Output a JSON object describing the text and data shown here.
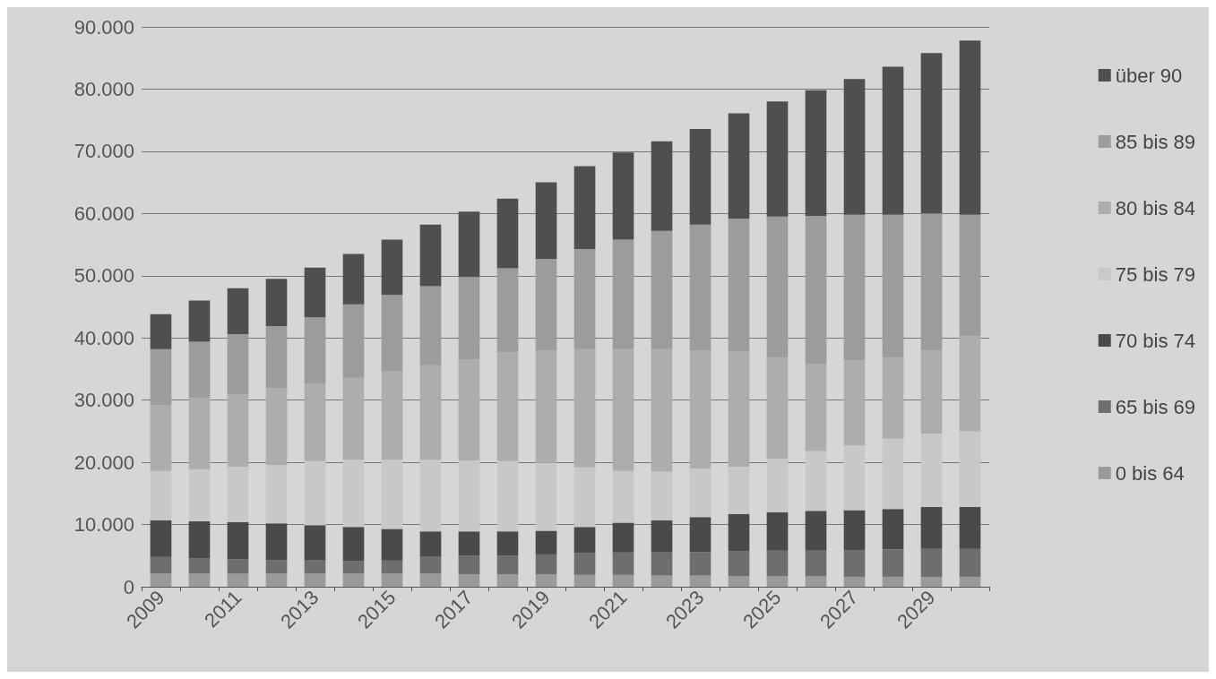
{
  "chart_data": {
    "type": "bar",
    "stacked": true,
    "categories": [
      "2009",
      null,
      "2011",
      null,
      "2013",
      null,
      "2015",
      null,
      "2017",
      null,
      "2019",
      null,
      "2021",
      null,
      "2023",
      null,
      "2025",
      null,
      "2027",
      null,
      "2029",
      null
    ],
    "ylim": [
      0,
      90000
    ],
    "yticks": [
      0,
      {
        "value": 10000,
        "label": "10.000"
      },
      {
        "value": 20000,
        "label": "20.000"
      },
      {
        "value": 30000,
        "label": "30.000"
      },
      {
        "value": 40000,
        "label": "40.000"
      },
      {
        "value": 50000,
        "label": "50.000"
      },
      {
        "value": 60000,
        "label": "60.000"
      },
      {
        "value": 70000,
        "label": "70.000"
      },
      {
        "value": 80000,
        "label": "80.000"
      },
      {
        "value": 90000,
        "label": "90.000"
      }
    ],
    "grid": "y",
    "legend": "right",
    "series": [
      {
        "name": "0 bis 64",
        "color": "#9a9a9a",
        "values": [
          2100,
          2100,
          2100,
          2100,
          2100,
          2100,
          2100,
          2100,
          2000,
          2000,
          2000,
          1900,
          1900,
          1800,
          1800,
          1700,
          1700,
          1700,
          1600,
          1600,
          1600,
          1600
        ]
      },
      {
        "name": "65 bis 69",
        "color": "#6e6e6e",
        "values": [
          2700,
          2500,
          2300,
          2200,
          2200,
          2000,
          2100,
          2700,
          3000,
          3000,
          3200,
          3500,
          3600,
          3700,
          3800,
          4000,
          4100,
          4100,
          4300,
          4400,
          4500,
          4500
        ]
      },
      {
        "name": "70 bis 74",
        "color": "#4a4a4a",
        "values": [
          5900,
          5900,
          6000,
          5900,
          5600,
          5500,
          5100,
          4100,
          3900,
          3900,
          3800,
          4200,
          4800,
          5200,
          5600,
          6000,
          6200,
          6400,
          6400,
          6500,
          6700,
          6700
        ]
      },
      {
        "name": "75 bis 79",
        "color": "#c8c8c8",
        "values": [
          7900,
          8400,
          8900,
          9400,
          10300,
          10800,
          11100,
          11500,
          11400,
          11300,
          10900,
          9600,
          8300,
          7800,
          7800,
          7600,
          8600,
          9600,
          10400,
          11300,
          11800,
          12200
        ]
      },
      {
        "name": "80 bis 84",
        "color": "#adadad",
        "values": [
          10600,
          11400,
          11600,
          12300,
          12400,
          13200,
          14200,
          15200,
          16200,
          17500,
          18100,
          19000,
          19600,
          19700,
          19000,
          18500,
          16200,
          14000,
          13700,
          13000,
          13400,
          15300
        ]
      },
      {
        "name": "85 bis 89",
        "color": "#9c9c9c",
        "values": [
          9000,
          9100,
          9700,
          10000,
          10700,
          11800,
          12300,
          12700,
          13300,
          13500,
          14700,
          16100,
          17600,
          19000,
          20200,
          21400,
          22700,
          23800,
          23400,
          23000,
          22000,
          19500
        ]
      },
      {
        "name": "über 90",
        "color": "#4f4f4f",
        "values": [
          5600,
          6600,
          7400,
          7600,
          8000,
          8100,
          8900,
          9900,
          10500,
          11200,
          12300,
          13300,
          14000,
          14400,
          15400,
          16900,
          18500,
          20200,
          21800,
          23800,
          25800,
          28000
        ]
      }
    ]
  }
}
